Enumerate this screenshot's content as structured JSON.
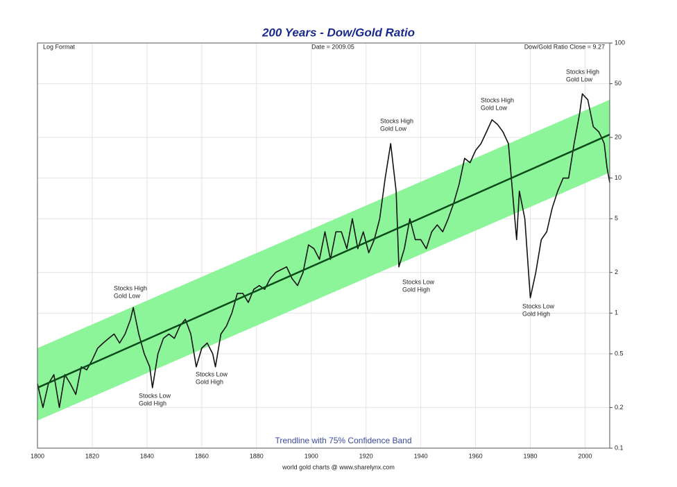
{
  "chart_data": {
    "type": "line",
    "title": "200 Years - Dow/Gold Ratio",
    "corner_left": "Log Format",
    "corner_center": "Date = 2009.05",
    "corner_right": "Dow/Gold Ratio Close = 9.27",
    "band_label": "Trendline with 75% Confidence Band",
    "source": "world gold charts @ www.sharelynx.com",
    "log_y": true,
    "grid": true,
    "xlim": [
      1800,
      2009
    ],
    "xticks": [
      1800,
      1820,
      1840,
      1860,
      1880,
      1900,
      1920,
      1940,
      1960,
      1980,
      2000
    ],
    "ylim": [
      0.1,
      100
    ],
    "yticks": [
      0.1,
      0.2,
      0.5,
      1,
      2,
      5,
      10,
      20,
      50,
      100
    ],
    "series": [
      {
        "name": "Dow/Gold Ratio",
        "color": "#111111",
        "x": [
          1800,
          1802,
          1804,
          1806,
          1808,
          1810,
          1812,
          1814,
          1816,
          1818,
          1820,
          1822,
          1824,
          1826,
          1828,
          1830,
          1832,
          1834,
          1835,
          1837,
          1839,
          1841,
          1842,
          1844,
          1846,
          1848,
          1850,
          1852,
          1854,
          1856,
          1858,
          1860,
          1862,
          1864,
          1865,
          1867,
          1869,
          1871,
          1873,
          1875,
          1877,
          1879,
          1881,
          1883,
          1885,
          1887,
          1889,
          1891,
          1893,
          1895,
          1897,
          1899,
          1901,
          1903,
          1905,
          1907,
          1909,
          1911,
          1913,
          1915,
          1917,
          1919,
          1921,
          1923,
          1925,
          1927,
          1929,
          1931,
          1932,
          1934,
          1936,
          1938,
          1940,
          1942,
          1944,
          1946,
          1948,
          1950,
          1952,
          1954,
          1956,
          1958,
          1960,
          1962,
          1964,
          1966,
          1968,
          1970,
          1972,
          1974,
          1975,
          1976,
          1978,
          1980,
          1982,
          1984,
          1986,
          1988,
          1990,
          1992,
          1994,
          1996,
          1998,
          1999,
          2001,
          2003,
          2005,
          2006,
          2007,
          2008,
          2009
        ],
        "values": [
          0.3,
          0.2,
          0.3,
          0.35,
          0.2,
          0.35,
          0.3,
          0.25,
          0.4,
          0.38,
          0.45,
          0.55,
          0.6,
          0.65,
          0.7,
          0.6,
          0.7,
          0.9,
          1.1,
          0.7,
          0.5,
          0.4,
          0.28,
          0.5,
          0.65,
          0.7,
          0.65,
          0.8,
          0.9,
          0.7,
          0.4,
          0.55,
          0.6,
          0.5,
          0.4,
          0.7,
          0.8,
          1.0,
          1.4,
          1.4,
          1.2,
          1.5,
          1.6,
          1.5,
          1.8,
          2.0,
          2.1,
          2.2,
          1.8,
          1.6,
          2.0,
          3.2,
          3.0,
          2.5,
          4.0,
          2.5,
          4.0,
          4.0,
          3.0,
          5.0,
          3.0,
          4.0,
          2.8,
          3.5,
          5.0,
          10,
          18,
          8,
          2.2,
          3.0,
          5.0,
          3.5,
          3.5,
          3.0,
          4.0,
          4.5,
          4.0,
          5.0,
          6.5,
          9,
          14,
          13,
          16,
          18,
          22,
          27,
          25,
          22,
          18,
          6,
          3.5,
          8,
          5,
          1.3,
          2.0,
          3.5,
          4,
          6,
          8,
          10,
          10,
          18,
          30,
          42,
          38,
          24,
          22,
          20,
          18,
          12,
          9.27
        ]
      }
    ],
    "trend": {
      "color": "#0b4a1a",
      "x": [
        1800,
        2009
      ],
      "values": [
        0.28,
        21
      ]
    },
    "band": {
      "color": "#8cf59a",
      "x": [
        1800,
        2009
      ],
      "upper": [
        0.55,
        38
      ],
      "lower": [
        0.16,
        11
      ]
    },
    "annotations": [
      [
        "Stocks High",
        "Gold Low"
      ],
      [
        "Stocks Low",
        "Gold High"
      ],
      [
        "Stocks Low",
        "Gold High"
      ],
      [
        "Stocks High",
        "Gold Low"
      ],
      [
        "Stocks Low",
        "Gold High"
      ],
      [
        "Stocks High",
        "Gold Low"
      ],
      [
        "Stocks Low",
        "Gold High"
      ],
      [
        "Stocks High",
        "Gold Low"
      ]
    ]
  }
}
